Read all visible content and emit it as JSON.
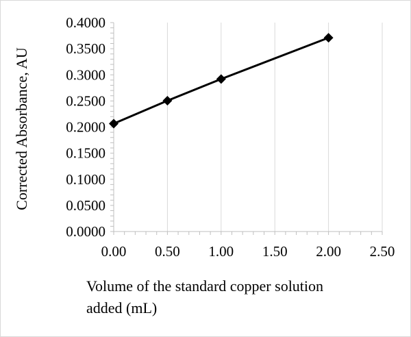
{
  "chart_data": {
    "type": "line",
    "title": "",
    "xlabel_lines": [
      "Volume of the standard copper solution",
      "added (mL)"
    ],
    "ylabel": "Corrected Absorbance, AU",
    "xlim": [
      0,
      2.5
    ],
    "ylim": [
      0,
      0.4
    ],
    "x_ticks": [
      "0.00",
      "0.50",
      "1.00",
      "1.50",
      "2.00",
      "2.50"
    ],
    "y_ticks": [
      "0.0000",
      "0.0500",
      "0.1000",
      "0.1500",
      "0.2000",
      "0.2500",
      "0.3000",
      "0.3500",
      "0.4000"
    ],
    "grid": "vertical",
    "legend": "none",
    "series": [
      {
        "x": [
          0,
          0.5,
          1.0,
          2.0
        ],
        "y": [
          0.2065,
          0.2505,
          0.292,
          0.371
        ],
        "marker": "diamond",
        "color": "#000000"
      }
    ]
  }
}
